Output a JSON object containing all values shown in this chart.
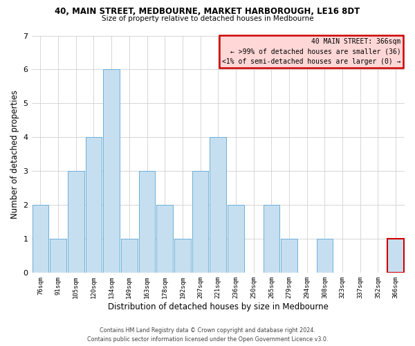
{
  "title1": "40, MAIN STREET, MEDBOURNE, MARKET HARBOROUGH, LE16 8DT",
  "title2": "Size of property relative to detached houses in Medbourne",
  "xlabel": "Distribution of detached houses by size in Medbourne",
  "ylabel": "Number of detached properties",
  "bar_labels": [
    "76sqm",
    "91sqm",
    "105sqm",
    "120sqm",
    "134sqm",
    "149sqm",
    "163sqm",
    "178sqm",
    "192sqm",
    "207sqm",
    "221sqm",
    "236sqm",
    "250sqm",
    "265sqm",
    "279sqm",
    "294sqm",
    "308sqm",
    "323sqm",
    "337sqm",
    "352sqm",
    "366sqm"
  ],
  "bar_heights": [
    2,
    1,
    3,
    4,
    6,
    1,
    3,
    2,
    1,
    3,
    4,
    2,
    0,
    2,
    1,
    0,
    1,
    0,
    0,
    0,
    1
  ],
  "bar_color": "#c6dff0",
  "bar_edge_color": "#6baed6",
  "highlight_bar_index": 20,
  "highlight_bar_edge_color": "#cc0000",
  "ylim": [
    0,
    7
  ],
  "yticks": [
    0,
    1,
    2,
    3,
    4,
    5,
    6,
    7
  ],
  "legend_title": "40 MAIN STREET: 366sqm",
  "legend_line1": "← >99% of detached houses are smaller (36)",
  "legend_line2": "<1% of semi-detached houses are larger (0) →",
  "legend_box_color": "#ffd7d7",
  "legend_border_color": "#cc0000",
  "footer1": "Contains HM Land Registry data © Crown copyright and database right 2024.",
  "footer2": "Contains public sector information licensed under the Open Government Licence v3.0.",
  "bg_color": "#ffffff",
  "grid_color": "#d0d0d0"
}
